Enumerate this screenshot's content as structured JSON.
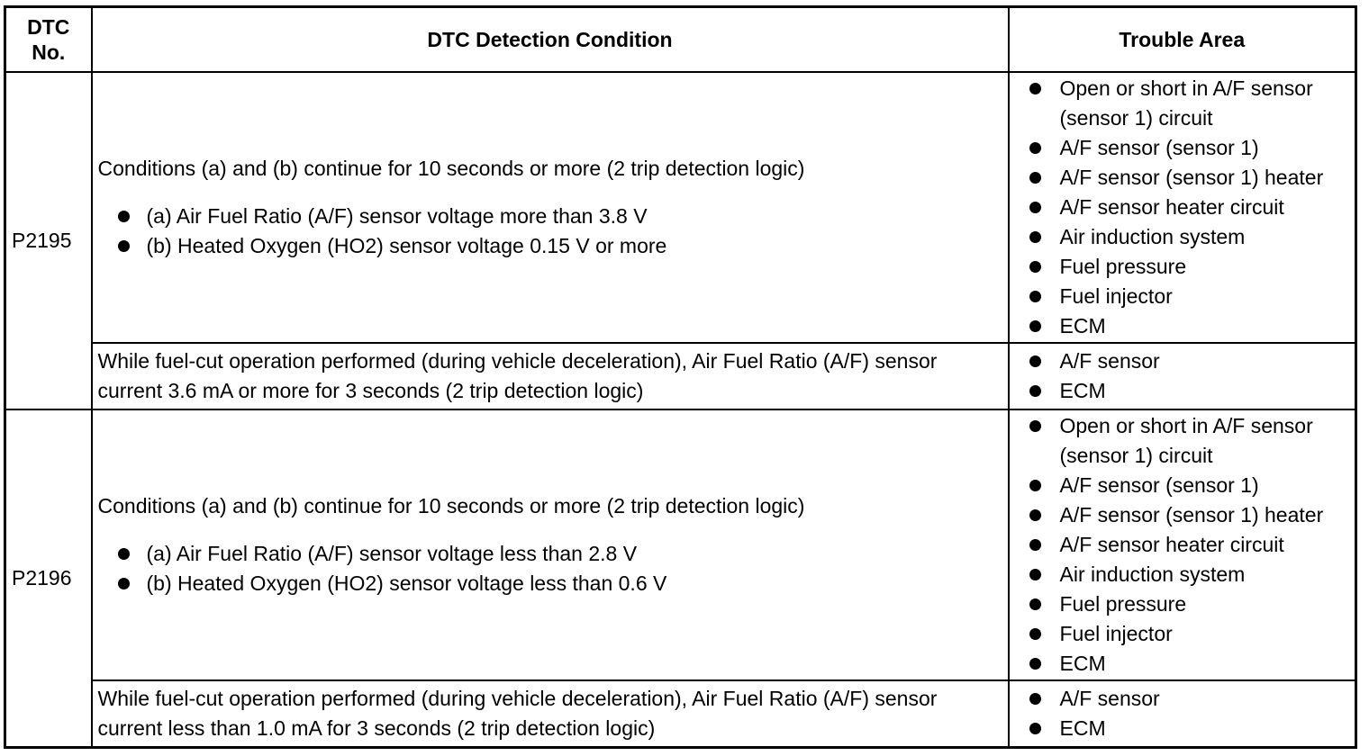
{
  "headers": {
    "dtc_no": "DTC No.",
    "condition": "DTC Detection Condition",
    "trouble_area": "Trouble Area"
  },
  "codes": [
    {
      "code": "P2195",
      "rows": [
        {
          "intro": "Conditions (a) and (b) continue for 10 seconds or more (2 trip detection logic)",
          "items": [
            "(a) Air Fuel Ratio (A/F) sensor voltage more than 3.8 V",
            "(b) Heated Oxygen (HO2) sensor voltage 0.15 V or more"
          ],
          "trouble": [
            "Open or short in A/F sensor (sensor 1) circuit",
            "A/F sensor (sensor 1)",
            "A/F sensor (sensor 1) heater",
            "A/F sensor heater circuit",
            "Air induction system",
            "Fuel pressure",
            "Fuel injector",
            "ECM"
          ]
        },
        {
          "intro": "While fuel-cut operation performed (during vehicle deceleration), Air Fuel Ratio (A/F) sensor current 3.6 mA or more for 3 seconds (2 trip detection logic)",
          "items": [],
          "trouble": [
            "A/F sensor",
            "ECM"
          ]
        }
      ]
    },
    {
      "code": "P2196",
      "rows": [
        {
          "intro": "Conditions (a) and (b) continue for 10 seconds or more (2 trip detection logic)",
          "items": [
            "(a) Air Fuel Ratio (A/F) sensor voltage less than 2.8 V",
            "(b) Heated Oxygen (HO2) sensor voltage less than 0.6 V"
          ],
          "trouble": [
            "Open or short in A/F sensor (sensor 1) circuit",
            "A/F sensor (sensor 1)",
            "A/F sensor (sensor 1) heater",
            "A/F sensor heater circuit",
            "Air induction system",
            "Fuel pressure",
            "Fuel injector",
            "ECM"
          ]
        },
        {
          "intro": "While fuel-cut operation performed (during vehicle deceleration), Air Fuel Ratio (A/F) sensor current less than 1.0 mA for 3 seconds (2 trip detection logic)",
          "items": [],
          "trouble": [
            "A/F sensor",
            "ECM"
          ]
        }
      ]
    }
  ]
}
